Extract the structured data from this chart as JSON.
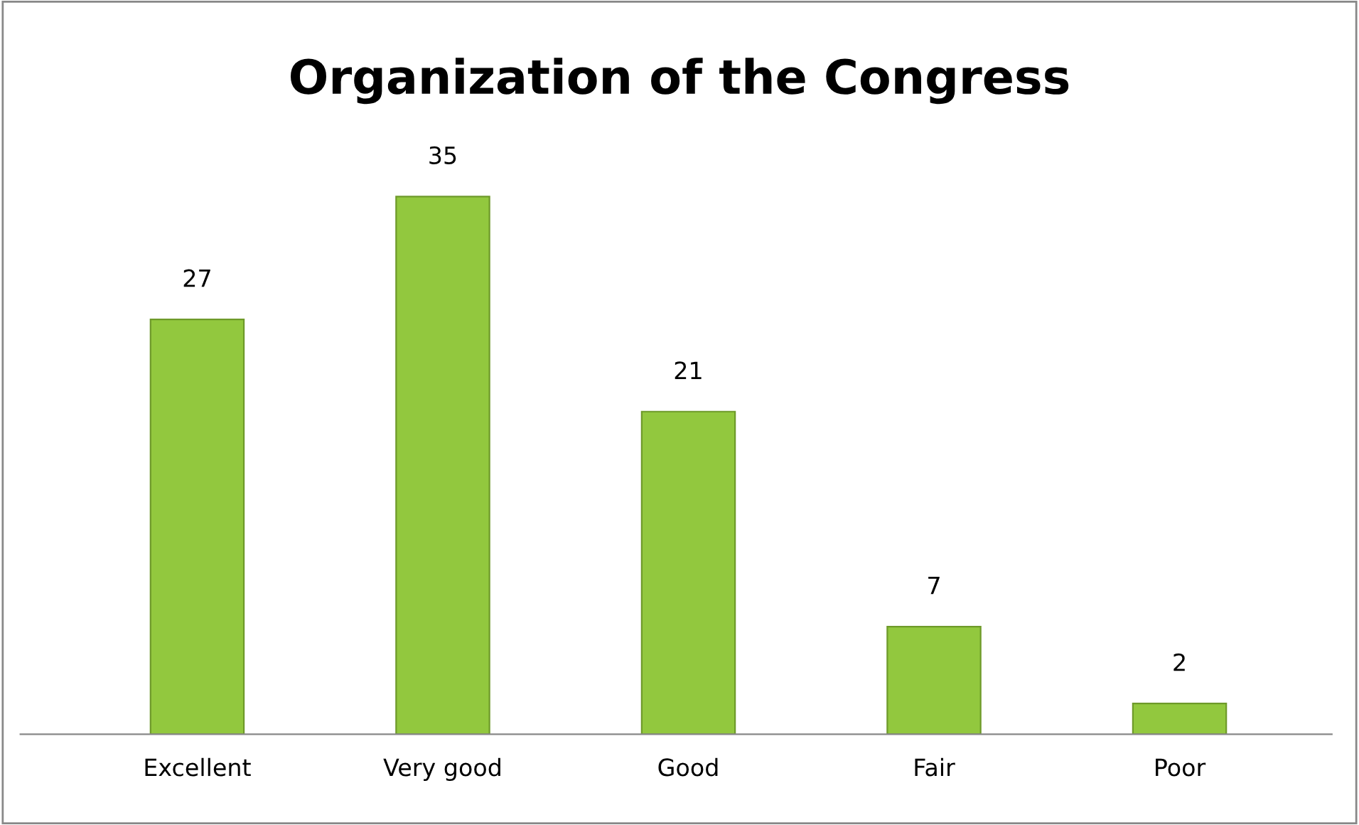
{
  "chart_data": {
    "type": "bar",
    "title": "Organization of the Congress",
    "categories": [
      "Excellent",
      "Very good",
      "Good",
      "Fair",
      "Poor"
    ],
    "values": [
      27,
      35,
      21,
      7,
      2
    ],
    "color": "#92c83e",
    "data_labels": true,
    "grid": false,
    "legend": false
  }
}
